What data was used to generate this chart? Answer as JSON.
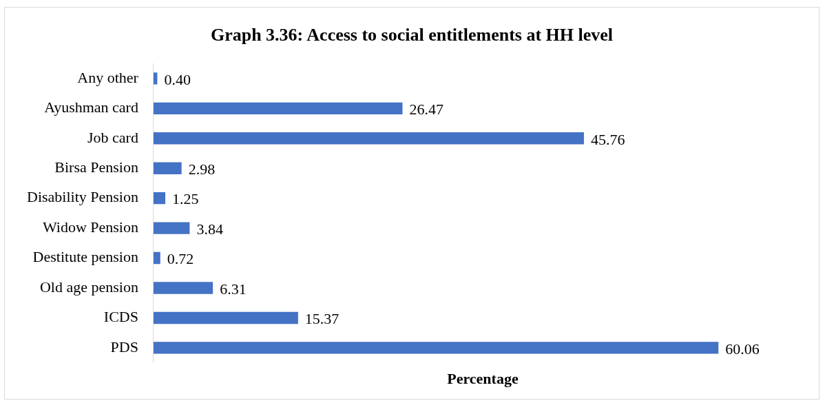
{
  "chart_data": {
    "type": "bar",
    "orientation": "horizontal",
    "title": "Graph 3.36: Access to social entitlements at HH level",
    "xlabel": "Percentage",
    "categories": [
      "Any other",
      "Ayushman card",
      "Job card",
      "Birsa Pension",
      "Disability Pension",
      "Widow Pension",
      "Destitute pension",
      "Old age pension",
      "ICDS",
      "PDS"
    ],
    "values": [
      0.4,
      26.47,
      45.76,
      2.98,
      1.25,
      3.84,
      0.72,
      6.31,
      15.37,
      60.06
    ],
    "value_labels": [
      "0.40",
      "26.47",
      "45.76",
      "2.98",
      "1.25",
      "3.84",
      "0.72",
      "6.31",
      "15.37",
      "60.06"
    ],
    "color": "#4472c4",
    "tick_labels": "y",
    "grid": false,
    "legend": false
  }
}
